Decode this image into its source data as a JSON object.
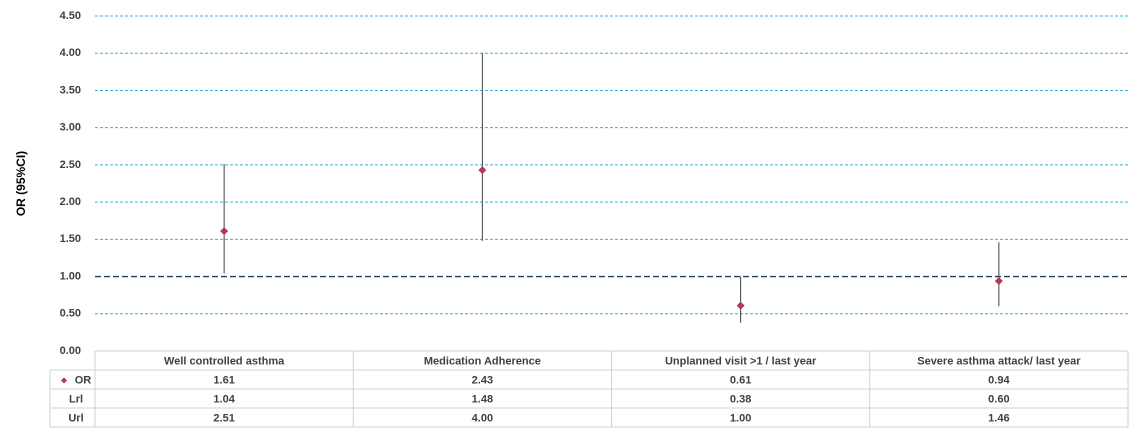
{
  "chart_data": {
    "type": "scatter",
    "ylabel": "OR (95%CI)",
    "ylim": [
      0,
      4.5
    ],
    "yticks": [
      "0.00",
      "0.50",
      "1.00",
      "1.50",
      "2.00",
      "2.50",
      "3.00",
      "3.50",
      "4.00",
      "4.50"
    ],
    "reference_line": 1.0,
    "grid": true,
    "categories": [
      "Well controlled asthma",
      "Medication Adherence",
      "Unplanned visit >1 / last year",
      "Severe asthma attack/ last year"
    ],
    "series": [
      {
        "name": "OR",
        "values": [
          1.61,
          2.43,
          0.61,
          0.94
        ],
        "labels": [
          "1.61",
          "2.43",
          "0.61",
          "0.94"
        ]
      },
      {
        "name": "Lrl",
        "values": [
          1.04,
          1.48,
          0.38,
          0.6
        ],
        "labels": [
          "1.04",
          "1.48",
          "0.38",
          "0.60"
        ]
      },
      {
        "name": "Url",
        "values": [
          2.51,
          4.0,
          1.0,
          1.46
        ],
        "labels": [
          "2.51",
          "4.00",
          "1.00",
          "1.46"
        ]
      }
    ]
  },
  "colors": {
    "marker": "#b03a5b",
    "gridline": "#3bb0d8",
    "refline": "#1f3b5c",
    "errorbar": "#404040",
    "table_border": "#d0d0d0"
  }
}
